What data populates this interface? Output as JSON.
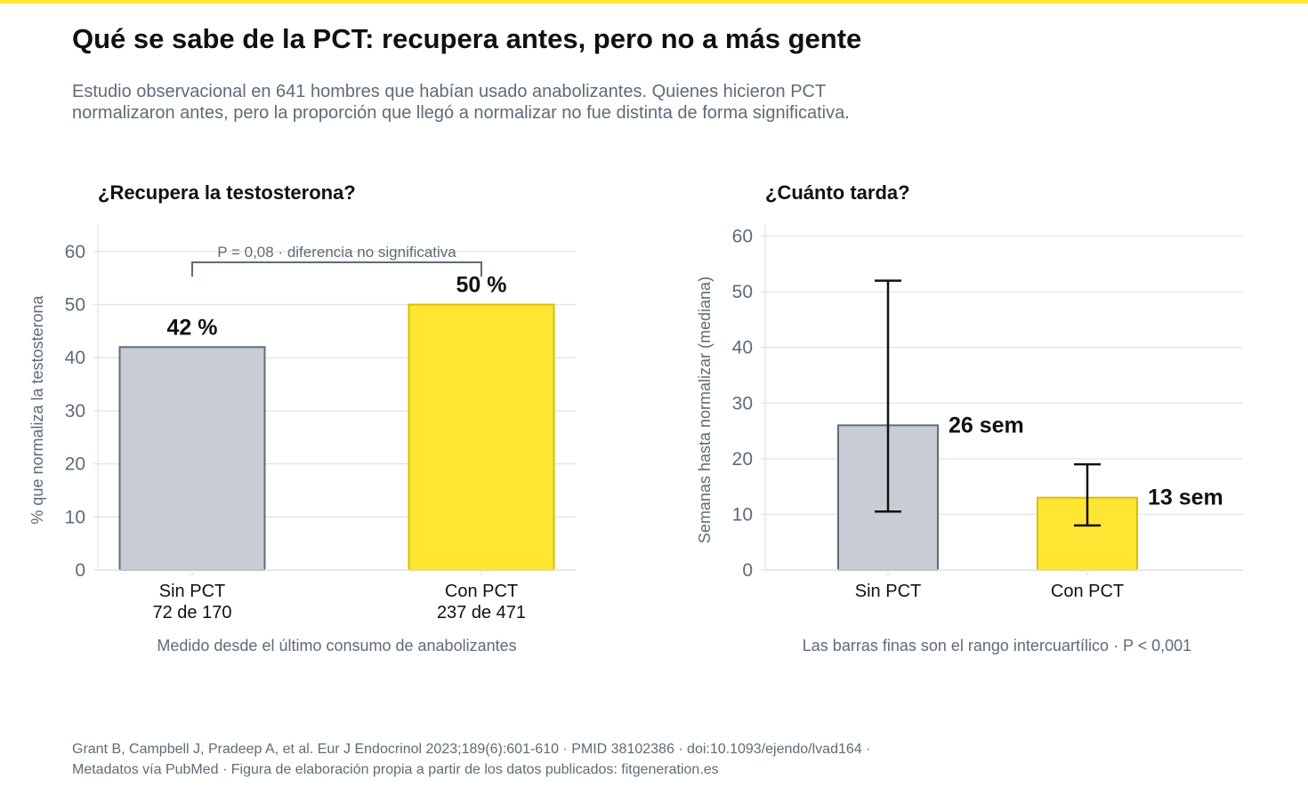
{
  "header": {
    "title": "Qué se sabe de la PCT: recupera antes, pero no a más gente",
    "subtitle_lines": [
      "Estudio observacional en 641 hombres que habían usado anabolizantes. Quienes hicieron PCT",
      "normalizaron antes, pero la proporción que llegó a normalizar no fue distinta de forma significativa."
    ]
  },
  "footer": {
    "lines": [
      "Grant B, Campbell J, Pradeep A, et al. Eur J Endocrinol 2023;189(6):601-610 · PMID 38102386 · doi:10.1093/ejendo/lvad164 ·",
      "Metadatos vía PubMed · Figura de elaboración propia a partir de los datos publicados: fitgeneration.es"
    ]
  },
  "colors": {
    "grey_bar": "#c8cdd5",
    "grey_edge": "#5f6b78",
    "yellow_bar": "#ffe633",
    "yellow_edge": "#d9bf00",
    "grid": "#e3e3e3",
    "axis_text": "#5f6b78"
  },
  "chart_data": [
    {
      "type": "bar",
      "title": "¿Recupera la testosterona?",
      "ylabel": "% que normaliza la testosterona",
      "ylim": [
        0,
        65
      ],
      "yticks": [
        0,
        10,
        20,
        30,
        40,
        50,
        60
      ],
      "categories": [
        "Sin PCT",
        "Con PCT"
      ],
      "category_sublabels": [
        "72 de 170",
        "237 de 471"
      ],
      "values": [
        42,
        50
      ],
      "value_labels": [
        "42 %",
        "50 %"
      ],
      "annotation": "P = 0,08 · diferencia no significativa",
      "caption": "Medido desde el último consumo de anabolizantes"
    },
    {
      "type": "bar",
      "title": "¿Cuánto tarda?",
      "ylabel": "Semanas hasta normalizar (mediana)",
      "ylim": [
        0,
        62
      ],
      "yticks": [
        0,
        10,
        20,
        30,
        40,
        50,
        60
      ],
      "categories": [
        "Sin PCT",
        "Con PCT"
      ],
      "values": [
        26,
        13
      ],
      "value_labels": [
        "26 sem",
        "13 sem"
      ],
      "iqr": [
        [
          10.5,
          52
        ],
        [
          8,
          19
        ]
      ],
      "caption": "Las barras finas son el rango intercuartílico · P < 0,001"
    }
  ]
}
